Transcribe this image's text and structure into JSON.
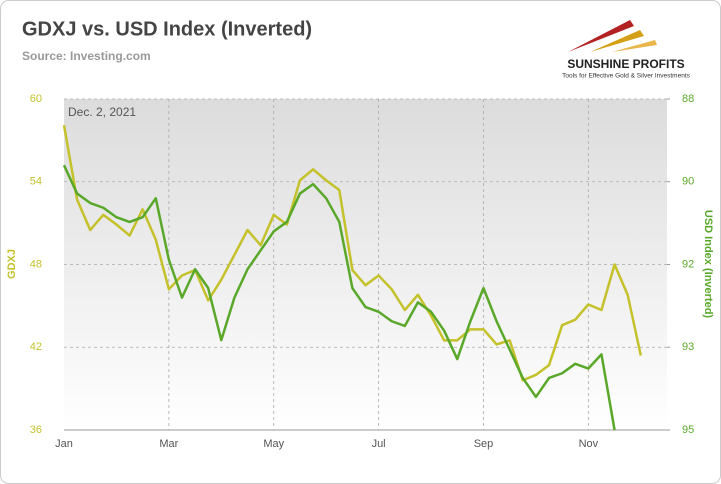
{
  "chart_data": {
    "type": "line",
    "title": "GDXJ vs. USD Index (Inverted)",
    "subtitle": "Source: Investing.com",
    "annotation": "Dec. 2, 2021",
    "logo": {
      "name": "SUNSHINE PROFITS",
      "tagline": "Tools for Effective Gold & Silver Investments"
    },
    "ylabel": "GDXJ",
    "y2label": "USD Index (Inverted)",
    "categories": [
      "Jan",
      null,
      null,
      null,
      null,
      null,
      null,
      null,
      "Mar",
      null,
      null,
      null,
      null,
      null,
      null,
      null,
      "May",
      null,
      null,
      null,
      null,
      null,
      null,
      null,
      "Jul",
      null,
      null,
      null,
      null,
      null,
      null,
      null,
      "Sep",
      null,
      null,
      null,
      null,
      null,
      null,
      null,
      "Nov",
      null,
      null,
      null,
      null,
      null,
      null
    ],
    "ylim": [
      36,
      60
    ],
    "yticks": [
      36,
      42,
      48,
      54,
      60
    ],
    "y2lim": [
      88,
      95
    ],
    "y2_inverted": true,
    "y2ticks": [
      {
        "value": 95,
        "label": "95"
      },
      {
        "value": 93.25,
        "label": "93"
      },
      {
        "value": 91.5,
        "label": "92"
      },
      {
        "value": 89.75,
        "label": "90"
      },
      {
        "value": 88,
        "label": "88"
      }
    ],
    "grid": true,
    "series": [
      {
        "name": "GDXJ",
        "color": "#c4c12b",
        "values": [
          58.1,
          52.7,
          50.5,
          51.6,
          50.9,
          50.1,
          52.0,
          49.8,
          46.2,
          47.2,
          47.6,
          45.4,
          46.9,
          48.7,
          50.5,
          49.4,
          51.6,
          50.9,
          54.1,
          54.9,
          54.1,
          53.4,
          47.6,
          46.5,
          47.2,
          46.2,
          44.7,
          45.8,
          44.3,
          42.5,
          42.5,
          43.3,
          43.3,
          42.2,
          42.5,
          39.6,
          40.0,
          40.7,
          43.6,
          44.0,
          45.1,
          44.7,
          48.0,
          45.8,
          41.4,
          null,
          null
        ]
      },
      {
        "name": "USD Index (Inverted)",
        "color": "#5aa82a",
        "axis": "y2",
        "values": [
          89.4,
          90.0,
          90.2,
          90.3,
          90.5,
          90.6,
          90.5,
          90.1,
          91.4,
          92.2,
          91.6,
          92.0,
          93.1,
          92.2,
          91.6,
          91.2,
          90.8,
          90.6,
          90.0,
          89.8,
          90.1,
          90.6,
          92.0,
          92.4,
          92.5,
          92.7,
          92.8,
          92.3,
          92.5,
          92.9,
          93.5,
          92.7,
          92.0,
          92.7,
          93.3,
          93.9,
          94.3,
          93.9,
          93.8,
          93.6,
          93.7,
          93.4,
          95.0,
          null,
          null,
          null,
          null
        ]
      }
    ]
  }
}
